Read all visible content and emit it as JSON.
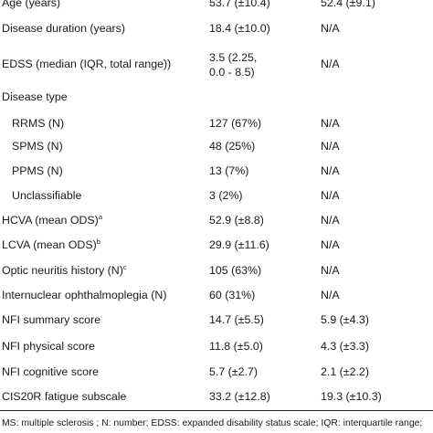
{
  "table": {
    "rows": [
      {
        "label": "Age (years)",
        "ms": "53.7 (±10.4)",
        "control": "52.4 (±9.1)"
      },
      {
        "label": "Disease duration (years)",
        "ms": "18.4 (±10.0)",
        "control": "N/A"
      },
      {
        "label": "EDSS (median (IQR, total range))",
        "ms": "3.5 (2.25,",
        "ms_line2": "0.0 - 8.5)",
        "control": "N/A"
      },
      {
        "label": "Disease type",
        "ms": "",
        "control": ""
      },
      {
        "label": "RRMS (N)",
        "ms": "127 (67%)",
        "control": "N/A"
      },
      {
        "label": "SPMS (N)",
        "ms": "48 (25%)",
        "control": "N/A"
      },
      {
        "label": "PPMS (N)",
        "ms": "13 (7%)",
        "control": "N/A"
      },
      {
        "label": "Unclassifiable",
        "ms": "3 (2%)",
        "control": "N/A"
      },
      {
        "label": "HCVA (mean ODS)",
        "sup": "a",
        "ms": "52.9 (±8.8)",
        "control": "N/A"
      },
      {
        "label": "LCVA (mean ODS)",
        "sup": "b",
        "ms": "29.9 (±11.6)",
        "control": "N/A"
      },
      {
        "label": "Optic neuritis history (N)",
        "sup": "c",
        "ms": "105 (63%)",
        "control": "N/A"
      },
      {
        "label": "Internuclear ophthalmoplegia (N)",
        "ms": "60 (31%)",
        "control": "N/A"
      },
      {
        "label": "NFI summary score",
        "ms": "14.7 (±5.5)",
        "control": "5.9 (±4.3)"
      },
      {
        "label": "NFI physical score",
        "ms": "11.8 (±5.0)",
        "control": "4.3 (±3.3)"
      },
      {
        "label": "NFI cognitive score",
        "ms": "5.7 (±2.7)",
        "control": "2.1 (±2.2)"
      },
      {
        "label": "CIS20R fatigue subscale",
        "ms": "33.2 (±12.8)",
        "control": "19.3 (±10.3)"
      }
    ]
  },
  "footnote": "MS: multiple sclerosis ; N: number; EDSS: expanded disability status scale; IQR: interquartile range;"
}
